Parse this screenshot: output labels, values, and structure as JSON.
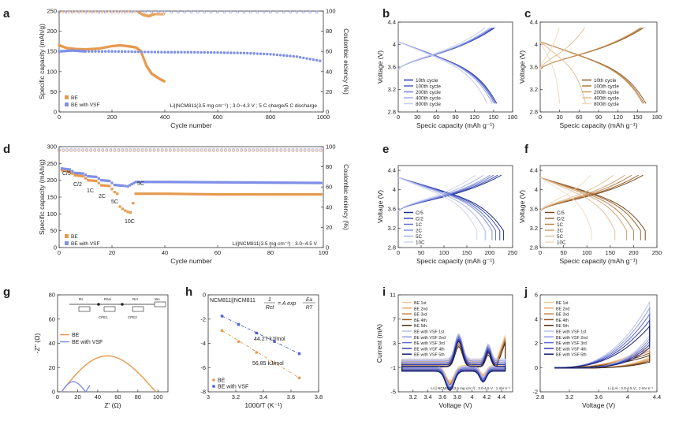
{
  "figure": {
    "panel_letters": [
      "a",
      "b",
      "c",
      "d",
      "e",
      "f",
      "g",
      "h",
      "i",
      "j"
    ]
  },
  "chart_data": [
    {
      "id": "a",
      "type": "scatter",
      "xlabel": "Cycle number",
      "ylabel": "Specific capacity (mAh/g)",
      "y2label": "Coulombic eiciency (%)",
      "xlim": [
        0,
        1000
      ],
      "ylim": [
        0,
        250
      ],
      "y2lim": [
        0,
        100
      ],
      "xticks": [
        0,
        200,
        400,
        600,
        800,
        1000
      ],
      "yticks": [
        0,
        50,
        100,
        150,
        200,
        250
      ],
      "y2ticks": [
        0,
        20,
        40,
        60,
        80,
        100
      ],
      "annotation": "Li||NCM811(3.5 mg cm⁻²) ; 3.0~4.3 V ; 5 C charge/5 C discharge",
      "legend": [
        "BE",
        "BE with VSF"
      ],
      "series": [
        {
          "name": "BE",
          "color": "#e69a4f",
          "points": [
            [
              0,
              165
            ],
            [
              30,
              158
            ],
            [
              60,
              156
            ],
            [
              100,
              155
            ],
            [
              150,
              157
            ],
            [
              200,
              163
            ],
            [
              230,
              165
            ],
            [
              260,
              163
            ],
            [
              290,
              160
            ],
            [
              310,
              150
            ],
            [
              330,
              115
            ],
            [
              350,
              95
            ],
            [
              380,
              82
            ],
            [
              400,
              75
            ]
          ]
        },
        {
          "name": "BE with VSF",
          "color": "#7f8fe8",
          "points": [
            [
              0,
              150
            ],
            [
              50,
              152
            ],
            [
              100,
              150
            ],
            [
              200,
              150
            ],
            [
              300,
              149
            ],
            [
              400,
              148
            ],
            [
              500,
              148
            ],
            [
              600,
              147
            ],
            [
              700,
              146
            ],
            [
              800,
              143
            ],
            [
              900,
              137
            ],
            [
              1000,
              125
            ]
          ]
        },
        {
          "name": "BE CE",
          "axis": "y2",
          "color": "#e69a4f",
          "points": [
            [
              0,
              99
            ],
            [
              100,
              99
            ],
            [
              200,
              99
            ],
            [
              300,
              99
            ],
            [
              320,
              96
            ],
            [
              340,
              95
            ],
            [
              360,
              97
            ],
            [
              400,
              97
            ]
          ]
        },
        {
          "name": "BE with VSF CE",
          "axis": "y2",
          "color": "#7f8fe8",
          "points": [
            [
              0,
              99
            ],
            [
              200,
              99
            ],
            [
              400,
              99
            ],
            [
              600,
              99
            ],
            [
              800,
              99
            ],
            [
              1000,
              99
            ]
          ]
        }
      ]
    },
    {
      "id": "b",
      "type": "line",
      "xlabel": "Specic capacity (mAh g⁻¹)",
      "ylabel": "Voltage (V)",
      "xlim": [
        0,
        180
      ],
      "ylim": [
        2.8,
        4.4
      ],
      "xticks": [
        0,
        30,
        60,
        90,
        120,
        150,
        180
      ],
      "yticks": [
        2.8,
        3.2,
        3.6,
        4.0,
        4.4
      ],
      "legend": [
        "10th cycle",
        "100th cycle",
        "200th cycle",
        "400th cycle",
        "800th cycle"
      ],
      "series": [
        {
          "name": "10th cycle",
          "color": "#2b3aa8",
          "capacity": 155
        },
        {
          "name": "100th cycle",
          "color": "#4d5cc4",
          "capacity": 153
        },
        {
          "name": "200th cycle",
          "color": "#7482d8",
          "capacity": 151
        },
        {
          "name": "400th cycle",
          "color": "#a1abe6",
          "capacity": 148
        },
        {
          "name": "800th cycle",
          "color": "#c7cdf1",
          "capacity": 140
        }
      ]
    },
    {
      "id": "c",
      "type": "line",
      "xlabel": "Specic capacity (mAh g⁻¹)",
      "ylabel": "Voltage (V)",
      "xlim": [
        0,
        180
      ],
      "ylim": [
        2.8,
        4.4
      ],
      "xticks": [
        0,
        30,
        60,
        90,
        120,
        150,
        180
      ],
      "yticks": [
        2.8,
        3.2,
        3.6,
        4.0,
        4.4
      ],
      "legend": [
        "10th cycle",
        "100th cycle",
        "200th cycle",
        "400th cycle",
        "800th cycle"
      ],
      "series": [
        {
          "name": "10th cycle",
          "color": "#8b5a2b",
          "capacity": 163
        },
        {
          "name": "100th cycle",
          "color": "#b07a3f",
          "capacity": 160
        },
        {
          "name": "200th cycle",
          "color": "#cf9c63",
          "capacity": 158
        },
        {
          "name": "400th cycle",
          "color": "#e2bf95",
          "capacity": 70
        },
        {
          "name": "800th cycle",
          "color": "#efd9bf",
          "capacity": 30
        }
      ]
    },
    {
      "id": "d",
      "type": "scatter",
      "xlabel": "Cycle number",
      "ylabel": "Specific capacity (mAh/g)",
      "y2label": "Coulombic eiciency (%)",
      "xlim": [
        0,
        100
      ],
      "ylim": [
        0,
        300
      ],
      "y2lim": [
        0,
        100
      ],
      "xticks": [
        0,
        20,
        40,
        60,
        80,
        100
      ],
      "yticks": [
        0,
        50,
        100,
        150,
        200,
        250,
        300
      ],
      "y2ticks": [
        0,
        20,
        40,
        60,
        80,
        100
      ],
      "annotation": "Li||NCM811(3.5 mg cm⁻²) ; 3.0~4.5 V",
      "rate_labels": [
        "C/5",
        "C/2",
        "1C",
        "2C",
        "5C",
        "10C",
        "5C"
      ],
      "legend": [
        "BE",
        "BE with VSF"
      ],
      "series": [
        {
          "name": "BE",
          "color": "#e69a4f",
          "points": [
            [
              1,
              230
            ],
            [
              4,
              225
            ],
            [
              6,
              215
            ],
            [
              9,
              212
            ],
            [
              11,
              200
            ],
            [
              14,
              198
            ],
            [
              16,
              185
            ],
            [
              19,
              183
            ],
            [
              21,
              165
            ],
            [
              22,
              160
            ],
            [
              23,
              122
            ],
            [
              24,
              115
            ],
            [
              25,
              110
            ],
            [
              26,
              106
            ],
            [
              27,
              104
            ],
            [
              29,
              160
            ],
            [
              40,
              160
            ],
            [
              60,
              158
            ],
            [
              80,
              158
            ],
            [
              100,
              158
            ]
          ]
        },
        {
          "name": "BE with VSF",
          "color": "#7f8fe8",
          "points": [
            [
              1,
              235
            ],
            [
              4,
              232
            ],
            [
              6,
              222
            ],
            [
              9,
              220
            ],
            [
              11,
              212
            ],
            [
              14,
              210
            ],
            [
              16,
              200
            ],
            [
              19,
              198
            ],
            [
              21,
              186
            ],
            [
              24,
              184
            ],
            [
              26,
              182
            ],
            [
              29,
              195
            ],
            [
              40,
              195
            ],
            [
              60,
              194
            ],
            [
              80,
              193
            ],
            [
              100,
              192
            ]
          ]
        }
      ]
    },
    {
      "id": "e",
      "type": "line",
      "xlabel": "Specic capacity (mAh g⁻¹)",
      "ylabel": "Voltage (V)",
      "xlim": [
        0,
        250
      ],
      "ylim": [
        2.8,
        4.5
      ],
      "xticks": [
        0,
        50,
        100,
        150,
        200,
        250
      ],
      "yticks": [
        2.8,
        3.2,
        3.6,
        4.0,
        4.4
      ],
      "legend": [
        "C/5",
        "C/2",
        "1C",
        "2C",
        "5C",
        "10C"
      ],
      "series": [
        {
          "name": "C/5",
          "color": "#1f2c8f",
          "capacity": 230
        },
        {
          "name": "C/2",
          "color": "#3d4fb3",
          "capacity": 222
        },
        {
          "name": "1C",
          "color": "#6272cf",
          "capacity": 213
        },
        {
          "name": "2C",
          "color": "#8692de",
          "capacity": 205
        },
        {
          "name": "5C",
          "color": "#abb4ea",
          "capacity": 190
        },
        {
          "name": "10C",
          "color": "#cfd4f3",
          "capacity": 172
        }
      ]
    },
    {
      "id": "f",
      "type": "line",
      "xlabel": "Specic capacity (mAh g⁻¹)",
      "ylabel": "Voltage (V)",
      "xlim": [
        0,
        250
      ],
      "ylim": [
        2.8,
        4.5
      ],
      "xticks": [
        0,
        50,
        100,
        150,
        200,
        250
      ],
      "yticks": [
        2.8,
        3.2,
        3.6,
        4.0,
        4.4
      ],
      "legend": [
        "C/5",
        "C/2",
        "1C",
        "2C",
        "5C",
        "10C"
      ],
      "series": [
        {
          "name": "C/5",
          "color": "#7a4a20",
          "capacity": 225
        },
        {
          "name": "C/2",
          "color": "#9c6533",
          "capacity": 215
        },
        {
          "name": "1C",
          "color": "#bb844d",
          "capacity": 200
        },
        {
          "name": "2C",
          "color": "#d1a473",
          "capacity": 185
        },
        {
          "name": "5C",
          "color": "#e3c39f",
          "capacity": 160
        },
        {
          "name": "10C",
          "color": "#f0dcc6",
          "capacity": 110
        }
      ]
    },
    {
      "id": "g",
      "type": "line",
      "xlabel": "Z' (Ω)",
      "ylabel": "-Z'' (Ω)",
      "xlim": [
        0,
        110
      ],
      "ylim": [
        0,
        80
      ],
      "xticks": [
        0,
        20,
        40,
        60,
        80,
        100
      ],
      "yticks": [
        0,
        20,
        40,
        60,
        80
      ],
      "circuit_labels": [
        "Rs",
        "Rsei",
        "Rct",
        "Wo",
        "CPE1",
        "CPE2"
      ],
      "legend": [
        "BE",
        "BE with VSF"
      ],
      "series": [
        {
          "name": "BE",
          "color": "#e69a4f",
          "x0": 4,
          "x1": 98,
          "peak": 32
        },
        {
          "name": "BE with VSF",
          "color": "#7f8fe8",
          "x0": 4,
          "x1": 28,
          "peak": 9
        }
      ]
    },
    {
      "id": "h",
      "type": "scatter",
      "xlabel": "1000/T (K⁻¹)",
      "ylabel": "",
      "xlim": [
        3.0,
        3.8
      ],
      "ylim": [
        -8,
        0
      ],
      "xticks": [
        3.0,
        3.2,
        3.4,
        3.6,
        3.8
      ],
      "yticks": [
        -8,
        -6,
        -4,
        -2,
        0
      ],
      "title": "NCM811||NCM811",
      "equation": [
        "1",
        "Rct",
        "= A exp",
        "Ea",
        "RT"
      ],
      "annotations": [
        "44.27 kJ/mol",
        "56.85 kJ/mol"
      ],
      "legend": [
        "BE",
        "BE with VSF"
      ],
      "series": [
        {
          "name": "BE",
          "color": "#e69a4f",
          "points": [
            [
              3.1,
              -2.95
            ],
            [
              3.22,
              -3.85
            ],
            [
              3.35,
              -4.75
            ],
            [
              3.48,
              -5.65
            ],
            [
              3.66,
              -6.85
            ]
          ]
        },
        {
          "name": "BE with VSF",
          "color": "#4f5fd6",
          "points": [
            [
              3.1,
              -1.75
            ],
            [
              3.22,
              -2.45
            ],
            [
              3.35,
              -3.15
            ],
            [
              3.48,
              -3.85
            ],
            [
              3.66,
              -4.85
            ]
          ]
        }
      ]
    },
    {
      "id": "i",
      "type": "line",
      "xlabel": "Voltage (V)",
      "ylabel": "Current (mA)",
      "xlim": [
        3.0,
        4.55
      ],
      "ylim": [
        -5,
        11
      ],
      "xticks": [
        3.2,
        3.4,
        3.6,
        3.8,
        4.0,
        4.2,
        4.4
      ],
      "yticks": [
        -5,
        -1,
        3,
        7,
        11
      ],
      "annotation": "Li || NCM811 (3.5 mg cm⁻²) ; 3.0-4.5 V ; 1 mV s⁻¹",
      "legend": [
        "BE 1st",
        "BE 2nd",
        "BE 3rd",
        "BE 4th",
        "BE 5th",
        "BE with VSF 1st",
        "BE with VSF 2nd",
        "BE with VSF 3rd",
        "BE with VSF 4th",
        "BE with VSF 5th"
      ],
      "legend_colors": [
        "#f2c79a",
        "#e5a86a",
        "#c98545",
        "#8f5a2a",
        "#4a2e12",
        "#b9c1ee",
        "#8d99e2",
        "#5c6ad2",
        "#2f3eb0",
        "#141c6e"
      ]
    },
    {
      "id": "j",
      "type": "line",
      "xlabel": "Voltage (V)",
      "ylabel": "",
      "xlim": [
        2.8,
        4.4
      ],
      "ylim": [
        -2,
        6
      ],
      "xticks": [
        2.8,
        3.2,
        3.6,
        4.0,
        4.4
      ],
      "yticks": [
        -2,
        0,
        2,
        4,
        6
      ],
      "annotation": "Li || Al ; 3.0-4.5 V ; 1 mV s⁻¹",
      "legend": [
        "BE 1st",
        "BE 2nd",
        "BE 3rd",
        "BE 4th",
        "BE 5th",
        "BE with VSF 1st",
        "BE with VSF 2nd",
        "BE with VSF 3rd",
        "BE with VSF 4th",
        "BE with VSF 5th"
      ],
      "legend_colors": [
        "#f2c79a",
        "#e5a86a",
        "#c98545",
        "#8f5a2a",
        "#4a2e12",
        "#b9c1ee",
        "#8d99e2",
        "#5c6ad2",
        "#2f3eb0",
        "#141c6e"
      ]
    }
  ]
}
